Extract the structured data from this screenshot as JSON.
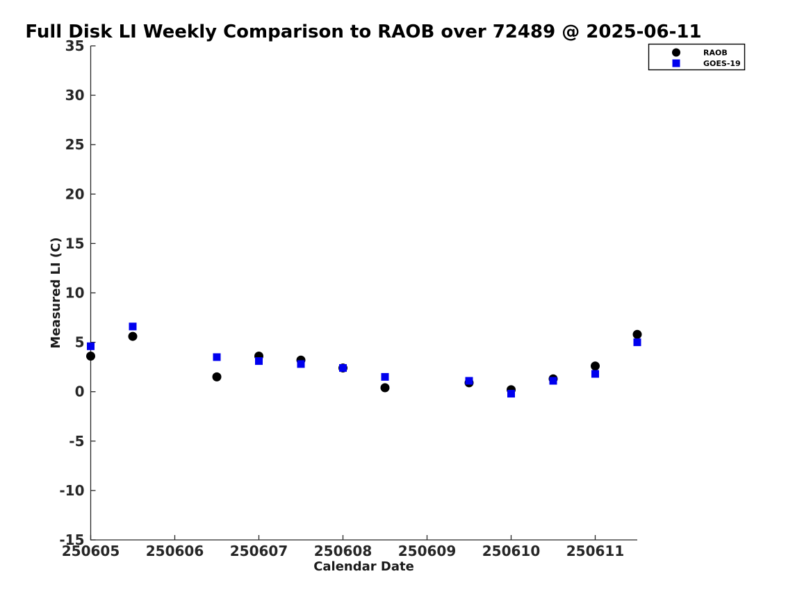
{
  "figure": {
    "title": "Full Disk LI Weekly Comparison to RAOB over 72489 @ 2025-06-11",
    "xlabel": "Calendar Date",
    "ylabel": "Measured LI (C)"
  },
  "legend": {
    "items": [
      {
        "label": "RAOB",
        "marker": "circle",
        "color": "#000000"
      },
      {
        "label": "GOES-19",
        "marker": "square",
        "color": "#0000ee"
      }
    ]
  },
  "chart_data": {
    "type": "scatter",
    "title": "Full Disk LI Weekly Comparison to RAOB over 72489 @ 2025-06-11",
    "xlabel": "Calendar Date",
    "ylabel": "Measured LI (C)",
    "xlim": [
      250605,
      250611.5
    ],
    "ylim": [
      -15,
      35
    ],
    "xticks": [
      250605,
      250606,
      250607,
      250608,
      250609,
      250610,
      250611
    ],
    "yticks": [
      -15,
      -10,
      -5,
      0,
      5,
      10,
      15,
      20,
      25,
      30,
      35
    ],
    "grid": false,
    "legend_position": "outside-top-right",
    "x": [
      250605,
      250605.5,
      250606.5,
      250607,
      250607.5,
      250608,
      250608.5,
      250609.5,
      250610,
      250610.5,
      250611,
      250611.5
    ],
    "series": [
      {
        "name": "RAOB",
        "marker": "circle",
        "color": "#000000",
        "values": [
          3.6,
          5.6,
          1.5,
          3.6,
          3.2,
          2.4,
          0.4,
          0.9,
          0.2,
          1.3,
          2.6,
          5.8
        ]
      },
      {
        "name": "GOES-19",
        "marker": "square",
        "color": "#0000ee",
        "values": [
          4.6,
          6.6,
          3.5,
          3.1,
          2.8,
          2.4,
          1.5,
          1.1,
          -0.2,
          1.1,
          1.8,
          5.0
        ]
      }
    ]
  }
}
